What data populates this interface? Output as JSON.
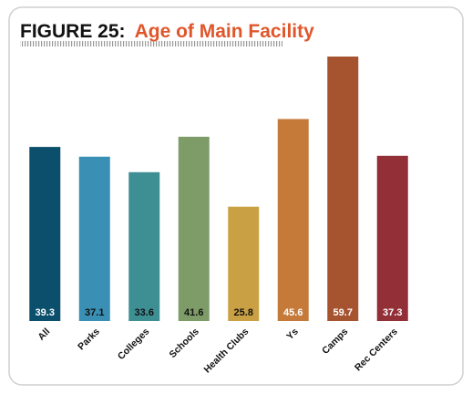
{
  "chart_data": {
    "type": "bar",
    "figure_label": "FIGURE 25:",
    "title": "Age of Main Facility",
    "categories": [
      "All",
      "Parks",
      "Colleges",
      "Schools",
      "Health Clubs",
      "Ys",
      "Camps",
      "Rec Centers"
    ],
    "values": [
      39.3,
      37.1,
      33.6,
      41.6,
      25.8,
      45.6,
      59.7,
      37.3
    ],
    "colors": [
      "#0b4f6c",
      "#3a8fb5",
      "#3e8f94",
      "#7e9c68",
      "#c9a043",
      "#c57a3a",
      "#a65330",
      "#922f37"
    ],
    "value_label_colors": [
      "#ffffff",
      "#111111",
      "#111111",
      "#111111",
      "#111111",
      "#ffffff",
      "#ffffff",
      "#ffffff"
    ],
    "grid": false
  }
}
